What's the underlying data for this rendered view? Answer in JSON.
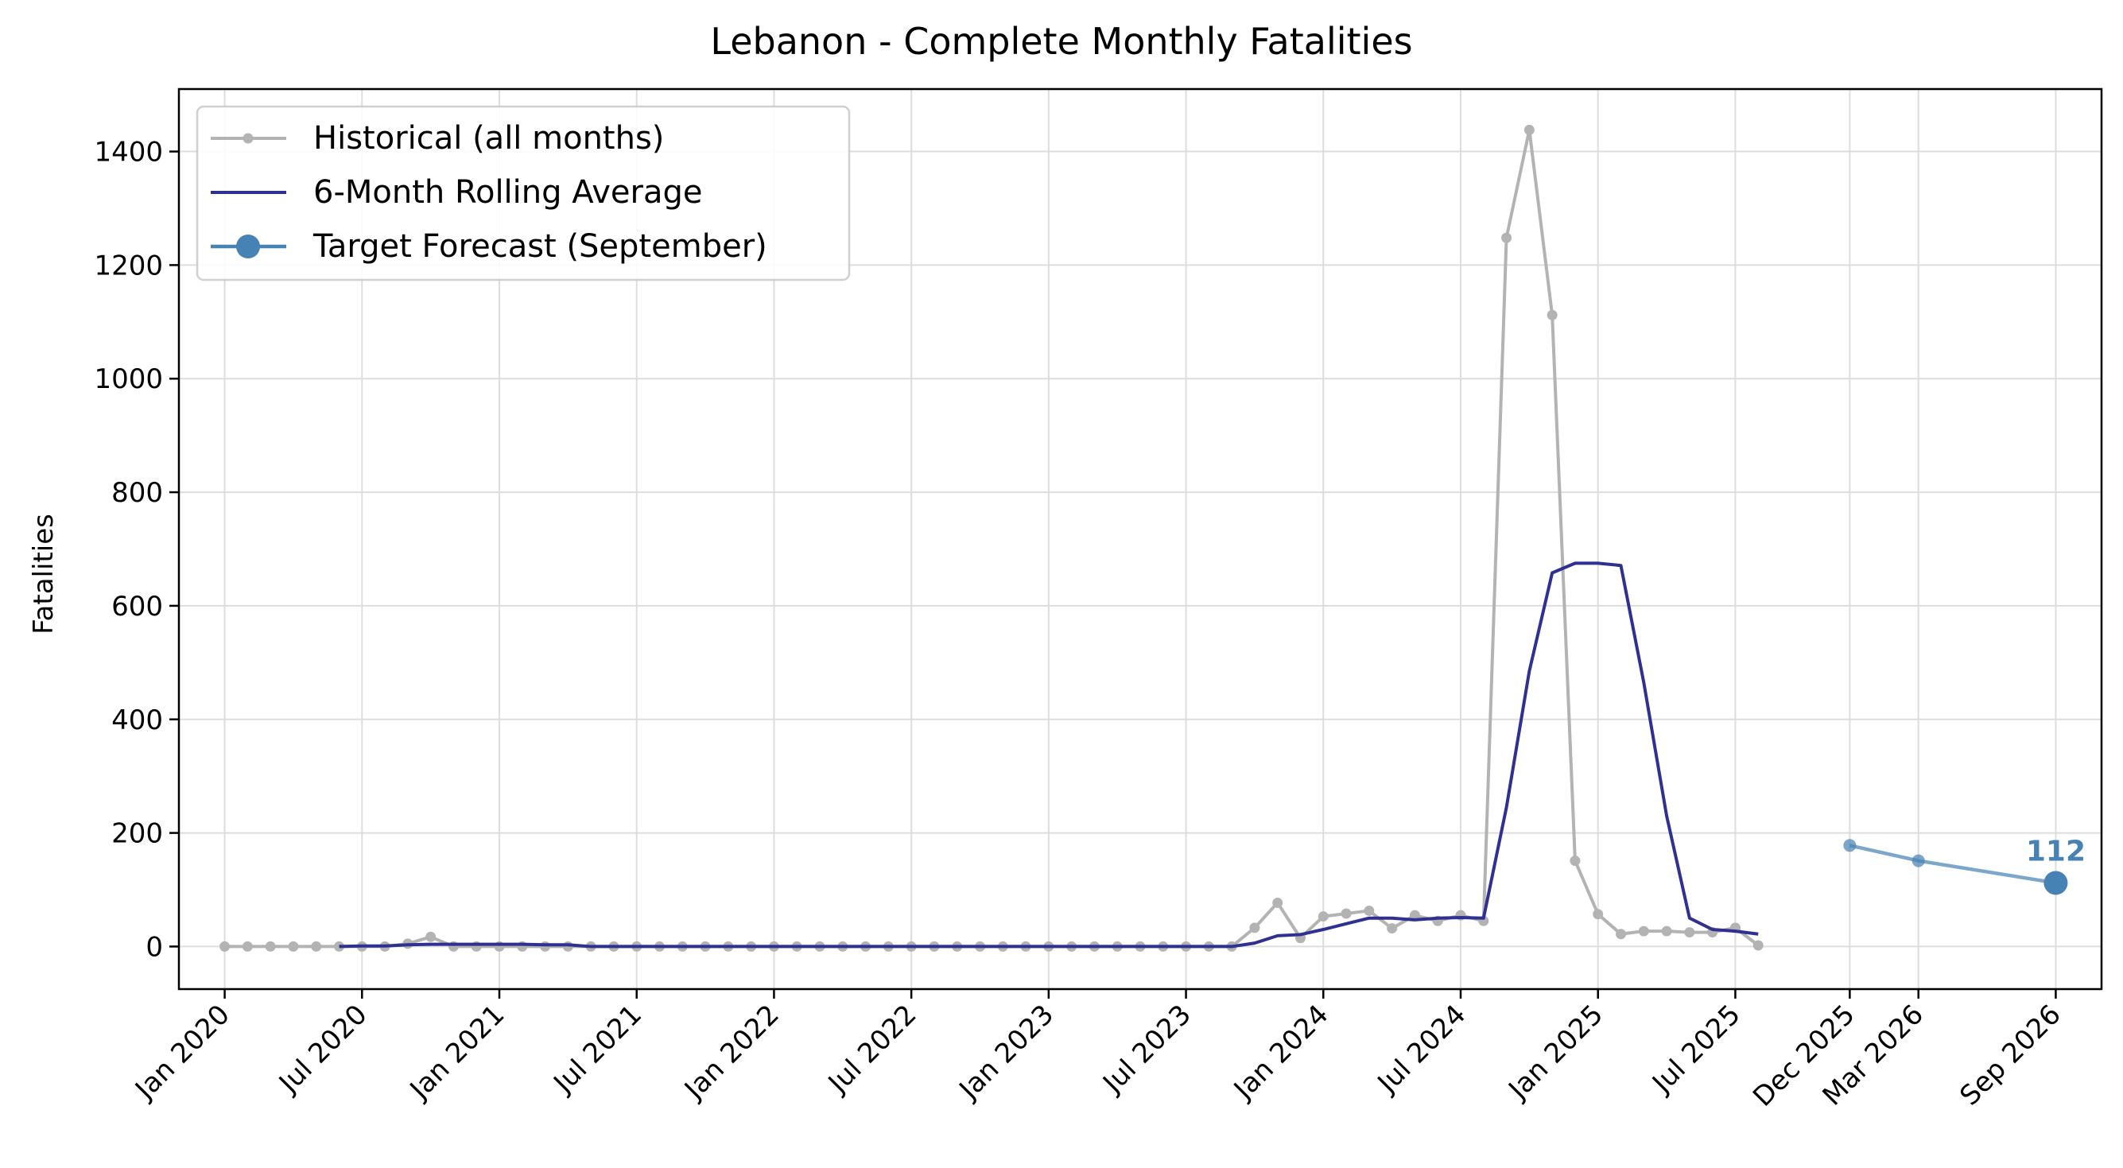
{
  "chart_data": {
    "type": "line",
    "title": "Lebanon - Complete Monthly Fatalities",
    "xlabel": "",
    "ylabel": "Fatalities",
    "ylim": [
      -75,
      1510
    ],
    "xlim": [
      "2019-11",
      "2026-11"
    ],
    "grid": true,
    "legend_position": "top-left",
    "x_ticks": [
      "Jan 2020",
      "Jul 2020",
      "Jan 2021",
      "Jul 2021",
      "Jan 2022",
      "Jul 2022",
      "Jan 2023",
      "Jul 2023",
      "Jan 2024",
      "Jul 2024",
      "Jan 2025",
      "Jul 2025",
      "Dec 2025",
      "Mar 2026",
      "Sep 2026"
    ],
    "x_tick_dates": [
      "2020-01",
      "2020-07",
      "2021-01",
      "2021-07",
      "2022-01",
      "2022-07",
      "2023-01",
      "2023-07",
      "2024-01",
      "2024-07",
      "2025-01",
      "2025-07",
      "2025-12",
      "2026-03",
      "2026-09"
    ],
    "y_ticks": [
      0,
      200,
      400,
      600,
      800,
      1000,
      1200,
      1400
    ],
    "series": [
      {
        "name": "Historical (all months)",
        "color": "#b3b3b3",
        "start": "2020-01",
        "values": [
          0,
          0,
          0,
          0,
          0,
          0,
          0,
          0,
          5,
          17,
          0,
          0,
          0,
          0,
          0,
          0,
          0,
          0,
          0,
          0,
          0,
          0,
          0,
          0,
          0,
          0,
          0,
          0,
          0,
          0,
          0,
          0,
          0,
          0,
          0,
          0,
          0,
          0,
          0,
          0,
          0,
          0,
          0,
          0,
          0,
          33,
          77,
          15,
          53,
          58,
          63,
          32,
          55,
          45,
          55,
          45,
          1248,
          1438,
          1112,
          151,
          57,
          22,
          27,
          27,
          25,
          25,
          33,
          2
        ]
      },
      {
        "name": "6-Month Rolling Average",
        "color": "#2e3192",
        "start": "2020-06",
        "values": [
          0,
          1,
          1,
          3,
          4,
          4,
          4,
          4,
          4,
          3,
          3,
          0,
          0,
          0,
          0,
          0,
          0,
          0,
          0,
          0,
          0,
          0,
          0,
          0,
          0,
          0,
          0,
          0,
          0,
          0,
          0,
          0,
          0,
          0,
          0,
          0,
          0,
          0,
          0,
          0,
          6,
          19,
          21,
          30,
          40,
          50,
          50,
          47,
          50,
          51,
          50,
          245,
          485,
          658,
          675,
          675,
          671,
          465,
          230,
          50,
          30,
          27,
          22
        ]
      },
      {
        "name": "Target Forecast (September)",
        "color": "#4682b4",
        "points": [
          {
            "x": "2025-12",
            "y": 178
          },
          {
            "x": "2026-03",
            "y": 151
          },
          {
            "x": "2026-09",
            "y": 112
          }
        ],
        "label": "112"
      }
    ]
  }
}
